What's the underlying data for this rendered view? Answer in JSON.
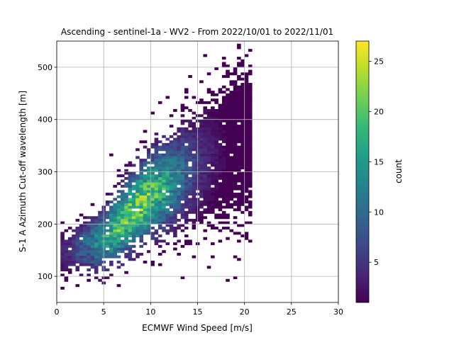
{
  "chart_data": {
    "type": "heatmap",
    "title": "Ascending - sentinel-1a - WV2 - From 2022/10/01 to 2022/11/01",
    "xlabel": "ECMWF Wind Speed [m/s]",
    "ylabel": "S-1 A Azimuth Cut-off wavelength [m]",
    "xlim": [
      0,
      30
    ],
    "ylim": [
      50,
      550
    ],
    "xticks": [
      "0",
      "5",
      "10",
      "15",
      "20",
      "25",
      "30"
    ],
    "xtick_values": [
      0,
      5,
      10,
      15,
      20,
      25,
      30
    ],
    "yticks": [
      "100",
      "200",
      "300",
      "400",
      "500"
    ],
    "ytick_values": [
      100,
      200,
      300,
      400,
      500
    ],
    "grid": true,
    "bin_width_x": 0.4,
    "bin_height_y": 5,
    "density_ridge": {
      "description": "count peaks along a rising ridge",
      "points": [
        {
          "wind_speed": 1.5,
          "wavelength": 150
        },
        {
          "wind_speed": 4.5,
          "wavelength": 165
        },
        {
          "wind_speed": 6.5,
          "wavelength": 195
        },
        {
          "wind_speed": 8.0,
          "wavelength": 225
        },
        {
          "wind_speed": 10.0,
          "wavelength": 255
        },
        {
          "wind_speed": 13.0,
          "wavelength": 290
        }
      ],
      "peak_count": 27,
      "peak_location": {
        "wind_speed": 8.2,
        "wavelength": 225
      }
    },
    "colorbar": {
      "label": "count",
      "colormap": "viridis",
      "range": [
        1,
        27
      ],
      "ticks": [
        "5",
        "10",
        "15",
        "20",
        "25"
      ],
      "tick_values": [
        5,
        10,
        15,
        20,
        25
      ]
    }
  },
  "colors": {
    "viridis_stops": [
      "#440154",
      "#482878",
      "#3e4989",
      "#31688e",
      "#26828e",
      "#1f9e89",
      "#35b779",
      "#6ece58",
      "#b5de2b",
      "#fde725"
    ],
    "grid": "#b0b0b0",
    "axes": "#000000"
  }
}
